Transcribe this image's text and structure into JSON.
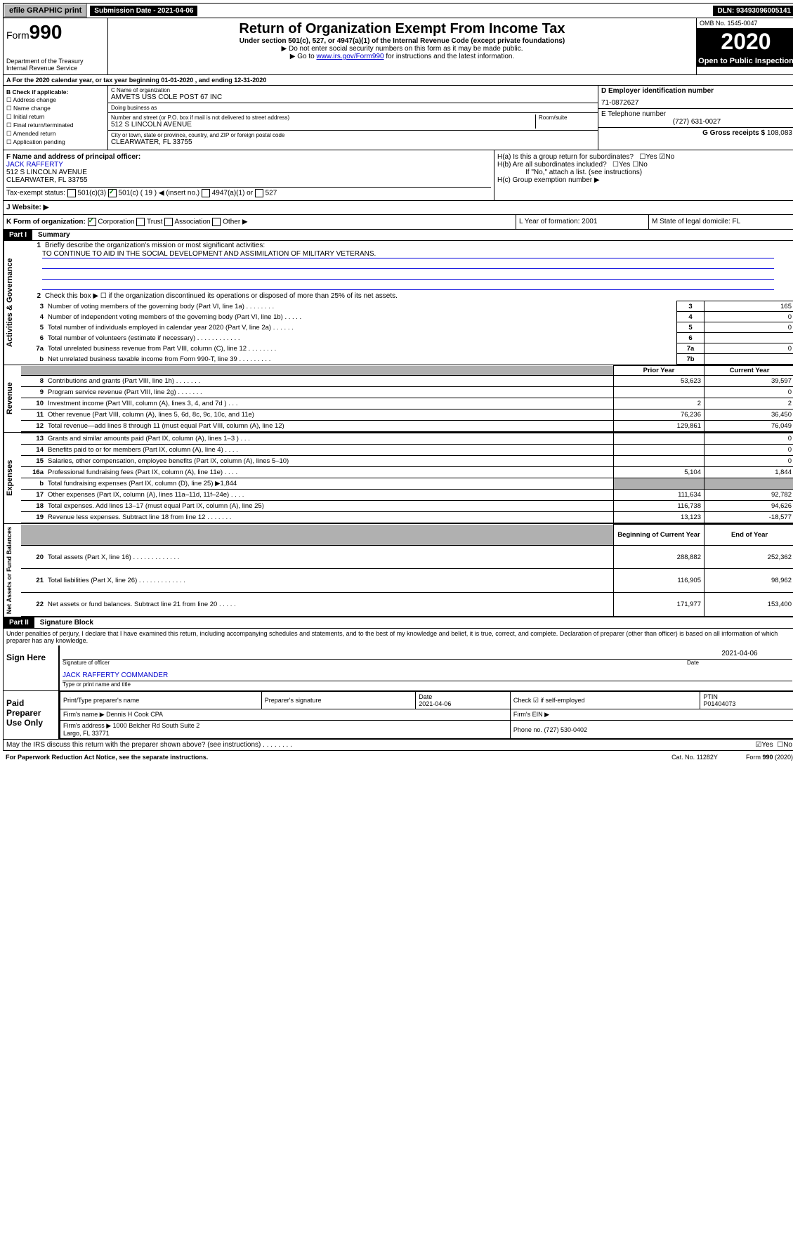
{
  "topbar": {
    "efile": "efile GRAPHIC print",
    "submission": "Submission Date - 2021-04-06",
    "dln": "DLN: 93493096005141"
  },
  "header": {
    "form_prefix": "Form",
    "form_num": "990",
    "dept": "Department of the Treasury\nInternal Revenue Service",
    "title": "Return of Organization Exempt From Income Tax",
    "subtitle": "Under section 501(c), 527, or 4947(a)(1) of the Internal Revenue Code (except private foundations)",
    "instr1": "▶ Do not enter social security numbers on this form as it may be made public.",
    "instr2_pre": "▶ Go to ",
    "instr2_link": "www.irs.gov/Form990",
    "instr2_post": " for instructions and the latest information.",
    "omb": "OMB No. 1545-0047",
    "year": "2020",
    "open": "Open to Public Inspection"
  },
  "sectionA": "A For the 2020 calendar year, or tax year beginning 01-01-2020    , and ending 12-31-2020",
  "colB": {
    "header": "B Check if applicable:",
    "addr": "☐ Address change",
    "name": "☐ Name change",
    "initial": "☐ Initial return",
    "final": "☐ Final return/terminated",
    "amended": "☐ Amended return",
    "app": "☐ Application pending"
  },
  "colC": {
    "name_label": "C Name of organization",
    "name": "AMVETS USS COLE POST 67 INC",
    "dba_label": "Doing business as",
    "dba": "",
    "street_label": "Number and street (or P.O. box if mail is not delivered to street address)",
    "room_label": "Room/suite",
    "street": "512 S LINCOLN AVENUE",
    "city_label": "City or town, state or province, country, and ZIP or foreign postal code",
    "city": "CLEARWATER, FL  33755"
  },
  "colD": {
    "ein_label": "D Employer identification number",
    "ein": "71-0872627",
    "phone_label": "E Telephone number",
    "phone": "(727) 631-0027",
    "gross_label": "G Gross receipts $",
    "gross": "108,083"
  },
  "officer": {
    "label": "F  Name and address of principal officer:",
    "name": "JACK RAFFERTY",
    "street": "512 S LINCOLN AVENUE",
    "city": "CLEARWATER, FL  33755"
  },
  "hbox": {
    "ha": "H(a)  Is this a group return for subordinates?",
    "ha_yes": "☐Yes",
    "ha_no": "☑No",
    "hb": "H(b)  Are all subordinates included?",
    "hb_yes": "☐Yes",
    "hb_no": "☐No",
    "hb_note": "If \"No,\" attach a list. (see instructions)",
    "hc": "H(c)  Group exemption number ▶"
  },
  "taxStatus": {
    "label": "Tax-exempt status:",
    "c3": "501(c)(3)",
    "c_other": "501(c) ( 19 ) ◀ (insert no.)",
    "a1": "4947(a)(1) or",
    "s527": "527"
  },
  "website": {
    "label": "J   Website: ▶"
  },
  "kform": {
    "label": "K Form of organization:",
    "corp": "Corporation",
    "trust": "Trust",
    "assoc": "Association",
    "other": "Other ▶"
  },
  "lform": "L Year of formation: 2001",
  "mform": "M State of legal domicile: FL",
  "part1": {
    "header": "Part I",
    "title": "Summary",
    "l1": "Briefly describe the organization's mission or most significant activities:",
    "mission": "TO CONTINUE TO AID IN THE SOCIAL DEVELOPMENT AND ASSIMILATION OF MILITARY VETERANS.",
    "l2": "Check this box ▶ ☐  if the organization discontinued its operations or disposed of more than 25% of its net assets.",
    "lines_gov": [
      {
        "n": "3",
        "t": "Number of voting members of the governing body (Part VI, line 1a)   .    .    .    .    .    .    .    .",
        "box": "3",
        "v": "165"
      },
      {
        "n": "4",
        "t": "Number of independent voting members of the governing body (Part VI, line 1b)   .    .    .    .    .",
        "box": "4",
        "v": "0"
      },
      {
        "n": "5",
        "t": "Total number of individuals employed in calendar year 2020 (Part V, line 2a)   .    .    .    .    .    .",
        "box": "5",
        "v": "0"
      },
      {
        "n": "6",
        "t": "Total number of volunteers (estimate if necessary)   .    .    .    .    .    .    .    .    .    .    .    .",
        "box": "6",
        "v": ""
      },
      {
        "n": "7a",
        "t": "Total unrelated business revenue from Part VIII, column (C), line 12   .    .    .    .    .    .    .    .",
        "box": "7a",
        "v": "0"
      },
      {
        "n": "b",
        "t": "Net unrelated business taxable income from Form 990-T, line 39   .    .    .    .    .    .    .    .    .",
        "box": "7b",
        "v": ""
      }
    ],
    "hdr_prior": "Prior Year",
    "hdr_current": "Current Year",
    "lines_rev": [
      {
        "n": "8",
        "t": "Contributions and grants (Part VIII, line 1h)   .    .    .    .    .    .    .",
        "p": "53,623",
        "c": "39,597"
      },
      {
        "n": "9",
        "t": "Program service revenue (Part VIII, line 2g)   .    .    .    .    .    .    .",
        "p": "",
        "c": "0"
      },
      {
        "n": "10",
        "t": "Investment income (Part VIII, column (A), lines 3, 4, and 7d )   .    .    .",
        "p": "2",
        "c": "2"
      },
      {
        "n": "11",
        "t": "Other revenue (Part VIII, column (A), lines 5, 6d, 8c, 9c, 10c, and 11e)",
        "p": "76,236",
        "c": "36,450"
      },
      {
        "n": "12",
        "t": "Total revenue—add lines 8 through 11 (must equal Part VIII, column (A), line 12)",
        "p": "129,861",
        "c": "76,049"
      }
    ],
    "lines_exp": [
      {
        "n": "13",
        "t": "Grants and similar amounts paid (Part IX, column (A), lines 1–3 )   .    .    .",
        "p": "",
        "c": "0"
      },
      {
        "n": "14",
        "t": "Benefits paid to or for members (Part IX, column (A), line 4)   .    .    .    .",
        "p": "",
        "c": "0"
      },
      {
        "n": "15",
        "t": "Salaries, other compensation, employee benefits (Part IX, column (A), lines 5–10)",
        "p": "",
        "c": "0"
      },
      {
        "n": "16a",
        "t": "Professional fundraising fees (Part IX, column (A), line 11e)   .    .    .    .",
        "p": "5,104",
        "c": "1,844"
      },
      {
        "n": "b",
        "t": "Total fundraising expenses (Part IX, column (D), line 25) ▶1,844",
        "p": "shade",
        "c": "shade"
      },
      {
        "n": "17",
        "t": "Other expenses (Part IX, column (A), lines 11a–11d, 11f–24e)   .    .    .    .",
        "p": "111,634",
        "c": "92,782"
      },
      {
        "n": "18",
        "t": "Total expenses. Add lines 13–17 (must equal Part IX, column (A), line 25)",
        "p": "116,738",
        "c": "94,626"
      },
      {
        "n": "19",
        "t": "Revenue less expenses. Subtract line 18 from line 12   .    .    .    .    .    .    .",
        "p": "13,123",
        "c": "-18,577"
      }
    ],
    "hdr_begin": "Beginning of Current Year",
    "hdr_end": "End of Year",
    "lines_net": [
      {
        "n": "20",
        "t": "Total assets (Part X, line 16)   .    .    .    .    .    .    .    .    .    .    .    .    .",
        "p": "288,882",
        "c": "252,362"
      },
      {
        "n": "21",
        "t": "Total liabilities (Part X, line 26)   .    .    .    .    .    .    .    .    .    .    .    .    .",
        "p": "116,905",
        "c": "98,962"
      },
      {
        "n": "22",
        "t": "Net assets or fund balances. Subtract line 21 from line 20   .    .    .    .    .",
        "p": "171,977",
        "c": "153,400"
      }
    ],
    "vert_gov": "Activities & Governance",
    "vert_rev": "Revenue",
    "vert_exp": "Expenses",
    "vert_net": "Net Assets or Fund Balances"
  },
  "part2": {
    "header": "Part II",
    "title": "Signature Block",
    "perjury": "Under penalties of perjury, I declare that I have examined this return, including accompanying schedules and statements, and to the best of my knowledge and belief, it is true, correct, and complete. Declaration of preparer (other than officer) is based on all information of which preparer has any knowledge.",
    "sign_here": "Sign Here",
    "sig_officer": "Signature of officer",
    "date": "2021-04-06",
    "date_label": "Date",
    "officer_name": "JACK RAFFERTY COMMANDER",
    "type_name": "Type or print name and title",
    "paid": "Paid Preparer Use Only",
    "prep_name_label": "Print/Type preparer's name",
    "prep_sig_label": "Preparer's signature",
    "prep_date_label": "Date",
    "prep_date": "2021-04-06",
    "check_self": "Check ☑ if self-employed",
    "ptin_label": "PTIN",
    "ptin": "P01404073",
    "firm_name_label": "Firm's name    ▶",
    "firm_name": "Dennis H Cook CPA",
    "firm_ein_label": "Firm's EIN ▶",
    "firm_addr_label": "Firm's address ▶",
    "firm_addr": "1000 Belcher Rd South Suite 2\nLargo, FL  33771",
    "firm_phone_label": "Phone no.",
    "firm_phone": "(727) 530-0402",
    "discuss": "May the IRS discuss this return with the preparer shown above? (see instructions)    .    .    .    .    .    .    .    .",
    "discuss_yes": "☑Yes",
    "discuss_no": "☐No"
  },
  "footer": {
    "paperwork": "For Paperwork Reduction Act Notice, see the separate instructions.",
    "cat": "Cat. No. 11282Y",
    "form": "Form 990 (2020)"
  }
}
